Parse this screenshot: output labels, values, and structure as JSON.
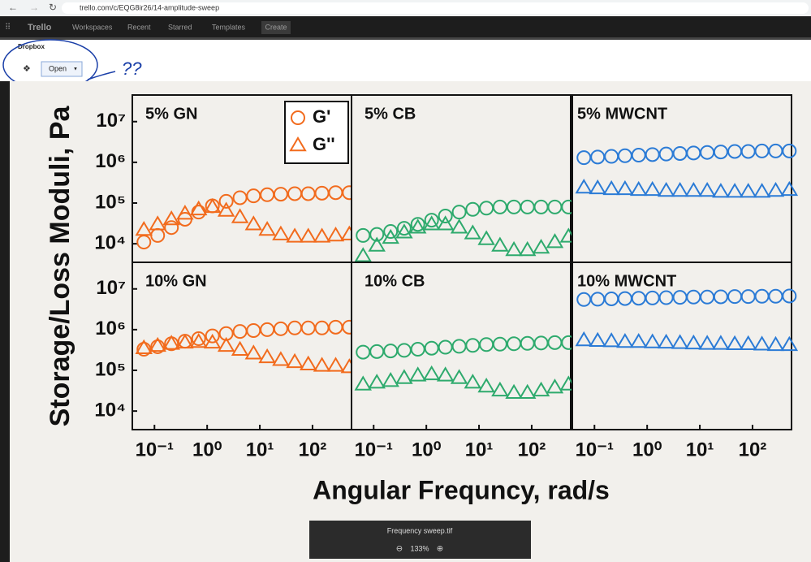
{
  "browser": {
    "url": "trello.com/c/EQG8ir26/14-amplitude-sweep"
  },
  "nav": {
    "logo": "Trello",
    "items": [
      "Workspaces",
      "Recent",
      "Starred",
      "Templates"
    ],
    "create": "Create"
  },
  "dropbox": {
    "title": "Dropbox",
    "button": "Open"
  },
  "annotation": "??",
  "figure": {
    "ylabel": "Storage/Loss Moduli, Pa",
    "xlabel": "Angular Frequncy, rad/s"
  },
  "chart_data": [
    {
      "type": "scatter",
      "title": "5% GN",
      "xscale": "log",
      "yscale": "log",
      "xlim": [
        0.038,
        550
      ],
      "ylim": [
        3500,
        45000000
      ],
      "yticks": [
        {
          "value": 10000,
          "label": "10⁴"
        },
        {
          "value": 100000,
          "label": "10⁵"
        },
        {
          "value": 1000000,
          "label": "10⁶"
        },
        {
          "value": 10000000,
          "label": "10⁷"
        }
      ],
      "legend": "upper right",
      "x": [
        0.063,
        0.115,
        0.21,
        0.38,
        0.69,
        1.26,
        2.3,
        4.2,
        7.6,
        13.8,
        25,
        46,
        83,
        151,
        275,
        500
      ],
      "series": [
        {
          "name": "G'",
          "marker": "circle",
          "color": "#f26b1d",
          "values": [
            11000,
            16000,
            25000,
            40000,
            60000,
            85000,
            110000,
            135000,
            150000,
            160000,
            165000,
            170000,
            170000,
            175000,
            180000,
            180000
          ]
        },
        {
          "name": "G''",
          "marker": "triangle",
          "color": "#f26b1d",
          "values": [
            22000,
            30000,
            40000,
            55000,
            70000,
            80000,
            65000,
            45000,
            30000,
            22000,
            17000,
            15000,
            15000,
            15000,
            16000,
            17000
          ]
        }
      ]
    },
    {
      "type": "scatter",
      "title": "5% CB",
      "xscale": "log",
      "yscale": "log",
      "xlim": [
        0.038,
        550
      ],
      "ylim": [
        3500,
        45000000
      ],
      "x": [
        0.063,
        0.115,
        0.21,
        0.38,
        0.69,
        1.26,
        2.3,
        4.2,
        7.6,
        13.8,
        25,
        46,
        83,
        151,
        275,
        500
      ],
      "series": [
        {
          "marker": "circle",
          "color": "#2eaa6d",
          "values": [
            16000,
            17000,
            20000,
            24000,
            30000,
            38000,
            48000,
            60000,
            70000,
            75000,
            80000,
            80000,
            80000,
            80000,
            80000,
            80000
          ]
        },
        {
          "marker": "triangle",
          "color": "#2eaa6d",
          "values": [
            5000,
            9000,
            14000,
            19000,
            25000,
            30000,
            30000,
            25000,
            18000,
            13000,
            9000,
            7000,
            7000,
            8000,
            11000,
            15000
          ]
        }
      ]
    },
    {
      "type": "scatter",
      "title": "5% MWCNT",
      "xscale": "log",
      "yscale": "log",
      "xlim": [
        0.038,
        550
      ],
      "ylim": [
        3500,
        45000000
      ],
      "x": [
        0.063,
        0.115,
        0.21,
        0.38,
        0.69,
        1.26,
        2.3,
        4.2,
        7.6,
        13.8,
        25,
        46,
        83,
        151,
        275,
        500
      ],
      "series": [
        {
          "marker": "circle",
          "color": "#2b7bd6",
          "values": [
            1300000,
            1350000,
            1400000,
            1450000,
            1500000,
            1550000,
            1600000,
            1650000,
            1700000,
            1750000,
            1800000,
            1850000,
            1850000,
            1900000,
            1900000,
            1900000
          ]
        },
        {
          "marker": "triangle",
          "color": "#2b7bd6",
          "values": [
            240000,
            230000,
            220000,
            220000,
            210000,
            210000,
            200000,
            200000,
            200000,
            200000,
            190000,
            190000,
            190000,
            190000,
            200000,
            210000
          ]
        }
      ]
    },
    {
      "type": "scatter",
      "title": "10% GN",
      "xscale": "log",
      "yscale": "log",
      "xlim": [
        0.038,
        550
      ],
      "ylim": [
        3500,
        45000000
      ],
      "yticks": [
        {
          "value": 10000,
          "label": "10⁴"
        },
        {
          "value": 100000,
          "label": "10⁵"
        },
        {
          "value": 1000000,
          "label": "10⁶"
        },
        {
          "value": 10000000,
          "label": "10⁷"
        }
      ],
      "xticks": [
        {
          "value": 0.1,
          "label": "10⁻¹"
        },
        {
          "value": 1,
          "label": "10⁰"
        },
        {
          "value": 10,
          "label": "10¹"
        },
        {
          "value": 100,
          "label": "10²"
        }
      ],
      "x": [
        0.063,
        0.115,
        0.21,
        0.38,
        0.69,
        1.26,
        2.3,
        4.2,
        7.6,
        13.8,
        25,
        46,
        83,
        151,
        275,
        500
      ],
      "series": [
        {
          "marker": "circle",
          "color": "#f26b1d",
          "values": [
            330000,
            380000,
            450000,
            520000,
            600000,
            700000,
            800000,
            900000,
            950000,
            1000000,
            1050000,
            1100000,
            1100000,
            1100000,
            1150000,
            1150000
          ]
        },
        {
          "marker": "triangle",
          "color": "#f26b1d",
          "values": [
            350000,
            400000,
            450000,
            480000,
            500000,
            480000,
            400000,
            320000,
            260000,
            210000,
            180000,
            160000,
            140000,
            130000,
            130000,
            120000
          ]
        }
      ]
    },
    {
      "type": "scatter",
      "title": "10% CB",
      "xscale": "log",
      "yscale": "log",
      "xlim": [
        0.038,
        550
      ],
      "ylim": [
        3500,
        45000000
      ],
      "xticks": [
        {
          "value": 0.1,
          "label": "10⁻¹"
        },
        {
          "value": 1,
          "label": "10⁰"
        },
        {
          "value": 10,
          "label": "10¹"
        },
        {
          "value": 100,
          "label": "10²"
        }
      ],
      "x": [
        0.063,
        0.115,
        0.21,
        0.38,
        0.69,
        1.26,
        2.3,
        4.2,
        7.6,
        13.8,
        25,
        46,
        83,
        151,
        275,
        500
      ],
      "series": [
        {
          "marker": "circle",
          "color": "#2eaa6d",
          "values": [
            280000,
            290000,
            300000,
            310000,
            330000,
            350000,
            370000,
            390000,
            410000,
            430000,
            440000,
            450000,
            460000,
            470000,
            480000,
            480000
          ]
        },
        {
          "marker": "triangle",
          "color": "#2eaa6d",
          "values": [
            45000,
            50000,
            55000,
            65000,
            75000,
            80000,
            75000,
            65000,
            50000,
            40000,
            32000,
            28000,
            28000,
            32000,
            38000,
            45000
          ]
        }
      ]
    },
    {
      "type": "scatter",
      "title": "10% MWCNT",
      "xscale": "log",
      "yscale": "log",
      "xlim": [
        0.038,
        550
      ],
      "ylim": [
        3500,
        45000000
      ],
      "xticks": [
        {
          "value": 0.1,
          "label": "10⁻¹"
        },
        {
          "value": 1,
          "label": "10⁰"
        },
        {
          "value": 10,
          "label": "10¹"
        },
        {
          "value": 100,
          "label": "10²"
        }
      ],
      "x": [
        0.063,
        0.115,
        0.21,
        0.38,
        0.69,
        1.26,
        2.3,
        4.2,
        7.6,
        13.8,
        25,
        46,
        83,
        151,
        275,
        500
      ],
      "series": [
        {
          "marker": "circle",
          "color": "#2b7bd6",
          "values": [
            5500000,
            5600000,
            5700000,
            5800000,
            5900000,
            6000000,
            6100000,
            6200000,
            6300000,
            6300000,
            6400000,
            6500000,
            6500000,
            6600000,
            6600000,
            6700000
          ]
        },
        {
          "marker": "triangle",
          "color": "#2b7bd6",
          "values": [
            550000,
            530000,
            520000,
            500000,
            500000,
            490000,
            480000,
            470000,
            460000,
            450000,
            450000,
            440000,
            440000,
            430000,
            420000,
            420000
          ]
        }
      ]
    }
  ],
  "viewer": {
    "filename": "Frequency sweep.tif",
    "zoom": "133%"
  }
}
